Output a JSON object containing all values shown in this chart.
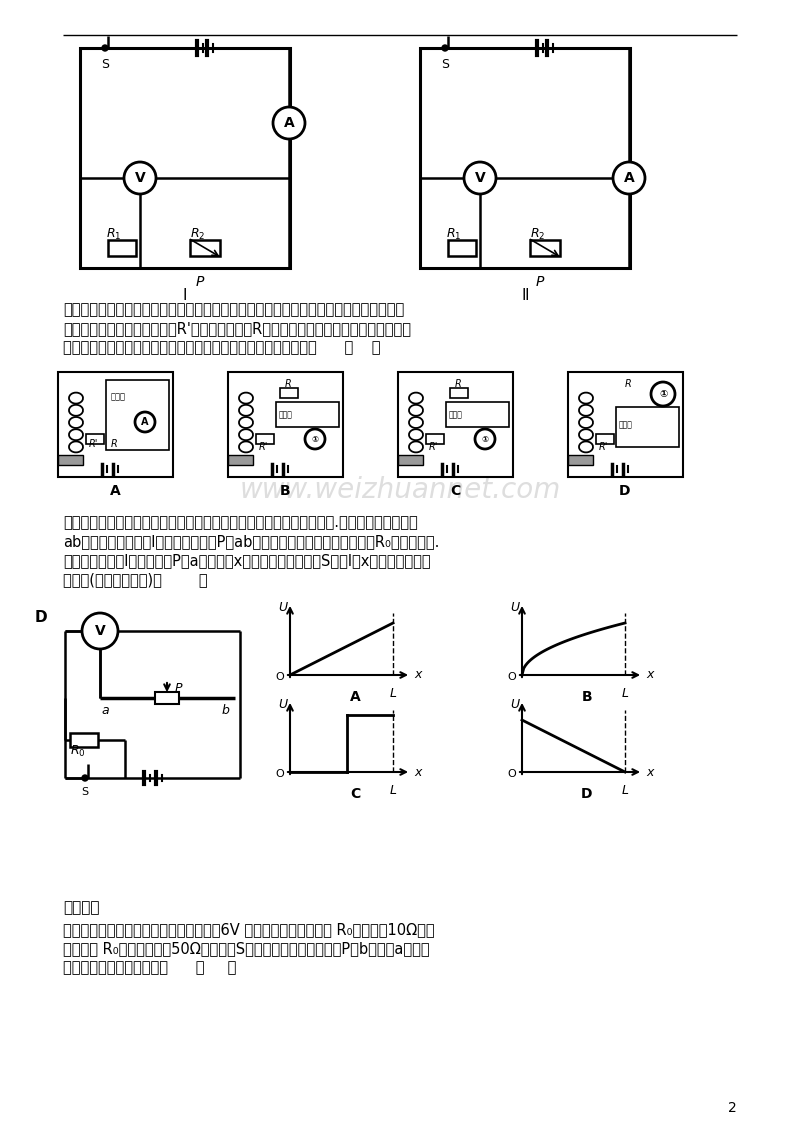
{
  "bg_color": "#ffffff",
  "watermark": "www.weizhuannet.com",
  "watermark_color": "#c8c8c8",
  "page_number": "2",
  "t3_line1": "题三：小明同学在物理实践活动中，设计了图中所示的四种用电流表或电压表示数反映弹",
  "t3_line2": "簧所受压力大小的电路，其中R'是滑动变阻器，R是定值电阻，电源两极间电压恒定。四",
  "t3_line3": "个电路中有一个电路能实现压力增大，电表示数增大，这个电路是      （    ）",
  "t4_line1": "题四：已知导体的电阻跟导体的长度成正比，跟导体的横截面积成反比.如图所示的电路中，",
  "t4_line2": "ab为粗细均匀的长为l的电阻丝，滑片P与ab接触良好，并且可以自由滑动，R₀为定值电阻.",
  "t4_line3": "若以电压表示数l为纵坐标，P离a点的距离x为横坐标，闭合开关S后，l随x变化的图线应为",
  "t4_line4": "图中的(电源电压不变)（        ）",
  "sw_header": "思维拓展",
  "sw_line1": "题一：图所示的电路中，电源两端电压为6V 并保持不变，定值电阻 R₀的阻值为10Ω，滑",
  "sw_line2": "动变阻器 R₀的最大阻值为50Ω。当开关S闭合，滑动变阻器的滑片P由b端移到a端的过",
  "sw_line3": "程中，下列说法中正确的是      （     ）"
}
